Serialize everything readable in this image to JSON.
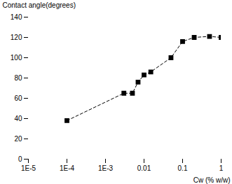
{
  "chart_data": {
    "type": "line",
    "x": [
      0.0001,
      0.003,
      0.005,
      0.007,
      0.01,
      0.015,
      0.05,
      0.1,
      0.2,
      0.5,
      1.0
    ],
    "values": [
      38,
      65,
      65,
      76,
      83,
      86,
      100,
      116,
      120,
      121,
      120
    ],
    "xlabel": "Cw (% w/w)",
    "ylabel": "Contact angle(degrees)",
    "xlim": [
      1e-05,
      1.0
    ],
    "ylim": [
      0,
      140
    ],
    "xticks": [
      {
        "value": 1e-05,
        "label": "1E-5"
      },
      {
        "value": 0.0001,
        "label": "1E-4"
      },
      {
        "value": 0.001,
        "label": "1E-3"
      },
      0.01,
      0.1,
      1
    ],
    "yticks": [
      0,
      20,
      40,
      60,
      80,
      100,
      120,
      140
    ],
    "log": "x",
    "color": "#000000",
    "marker": "square",
    "line_style": "dashed",
    "grid": false
  }
}
